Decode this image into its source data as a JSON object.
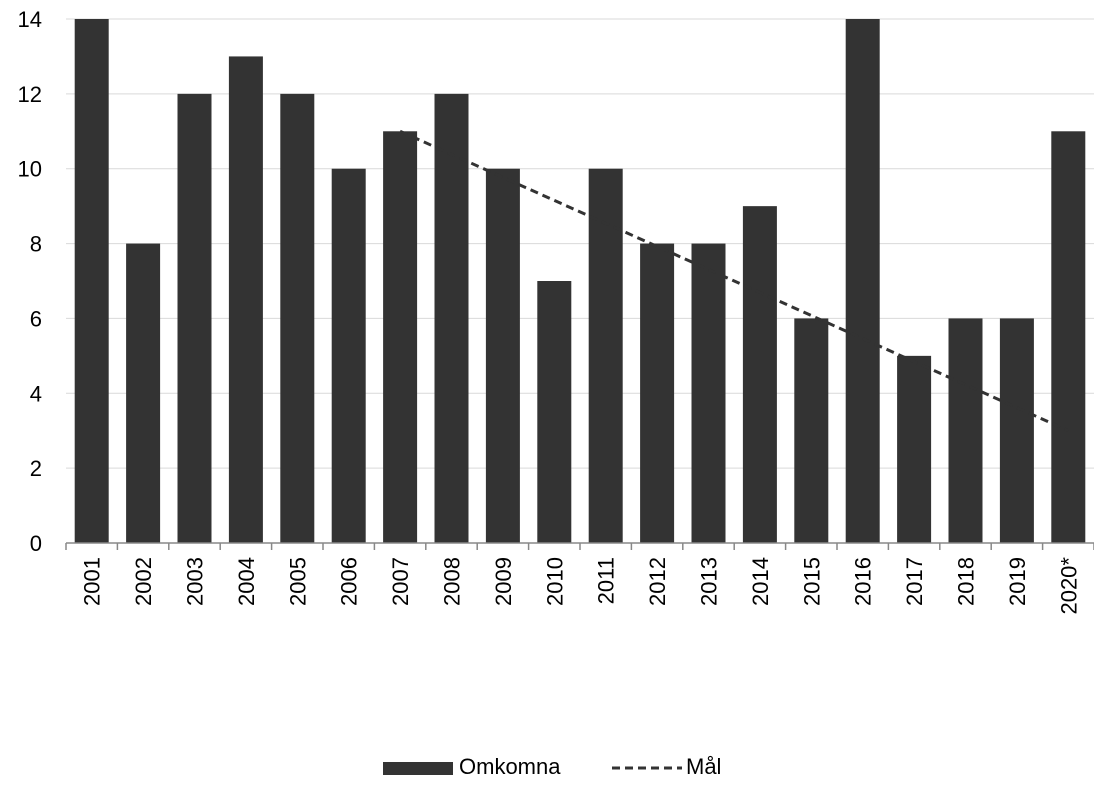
{
  "chart_data": {
    "type": "bar",
    "categories": [
      "2001",
      "2002",
      "2003",
      "2004",
      "2005",
      "2006",
      "2007",
      "2008",
      "2009",
      "2010",
      "2011",
      "2012",
      "2013",
      "2014",
      "2015",
      "2016",
      "2017",
      "2018",
      "2019",
      "2020*"
    ],
    "series": [
      {
        "name": "Omkomna",
        "type": "bar",
        "color": "#333333",
        "values": [
          14,
          8,
          12,
          13,
          12,
          10,
          11,
          12,
          10,
          7,
          10,
          8,
          8,
          9,
          6,
          14,
          5,
          6,
          6,
          11
        ]
      },
      {
        "name": "Mål",
        "type": "line",
        "style": "dashed",
        "color": "#333333",
        "start": {
          "category": "2007",
          "value": 11
        },
        "end": {
          "category": "2020*",
          "value": 3
        }
      }
    ],
    "yticks": [
      "0",
      "2",
      "4",
      "6",
      "8",
      "10",
      "12",
      "14"
    ],
    "ylim": [
      0,
      14
    ],
    "grid": true,
    "legend": {
      "placement": "bottom-center",
      "items": [
        {
          "label": "Omkomna",
          "kind": "bar"
        },
        {
          "label": "Mål",
          "kind": "dashed-line"
        }
      ]
    },
    "xlabel": "",
    "ylabel": ""
  }
}
